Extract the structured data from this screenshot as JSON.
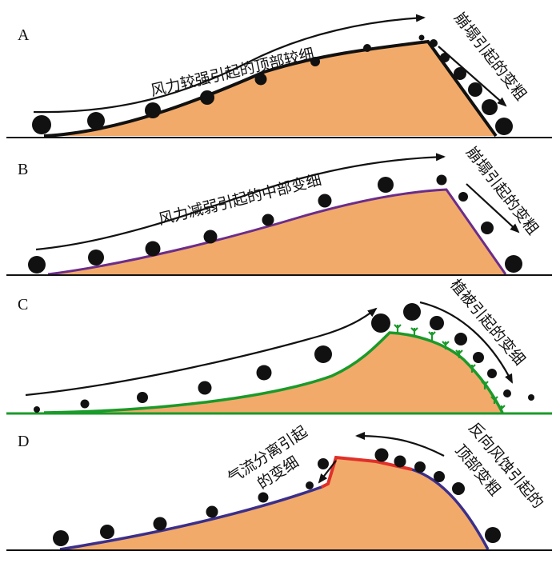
{
  "panels": [
    {
      "label": "A",
      "windward_text": "风力较强引起的顶部较细",
      "leeward_text": "崩塌引起的变粗",
      "profile_color": "#111111"
    },
    {
      "label": "B",
      "windward_text": "风力减弱引起的中部变细",
      "leeward_text": "崩塌引起的变粗",
      "profile_color": "#6b2d8a"
    },
    {
      "label": "C",
      "leeward_text": "植被引起的变细",
      "profile_color": "#1a9a2a",
      "vegetation_color": "#1a9a2a"
    },
    {
      "label": "D",
      "windward_text_line1": "气流分离引起",
      "windward_text_line2": "的变细",
      "leeward_text_line1": "反向风蚀引起的",
      "leeward_text_line2": "顶部变粗",
      "profile_color": "#3b2f8a",
      "crest_color": "#e0302a"
    }
  ],
  "colors": {
    "dune_fill": "#f2aa6a",
    "grain": "#111111"
  }
}
